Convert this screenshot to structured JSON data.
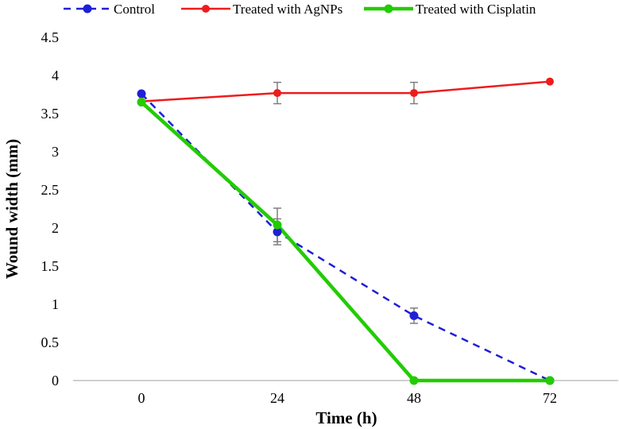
{
  "chart_data": {
    "type": "line",
    "xlabel": "Time (h)",
    "ylabel": "Wound width (mm)",
    "x": [
      0,
      24,
      48,
      72
    ],
    "x_tick_labels": [
      "0",
      "24",
      "48",
      "72"
    ],
    "ylim": [
      0,
      4.5
    ],
    "y_tick_labels": [
      "0",
      "0.5",
      "1",
      "1.5",
      "2",
      "2.5",
      "3",
      "3.5",
      "4",
      "4.5"
    ],
    "grid": false,
    "legend_position": "top",
    "series": [
      {
        "name": "Control",
        "color": "#1f1fd6",
        "line_style": "dashed",
        "values": [
          3.76,
          1.95,
          0.85,
          0.0
        ],
        "error": [
          0,
          0.17,
          0.1,
          0
        ]
      },
      {
        "name": "Treated with AgNPs",
        "color": "#ee1c1c",
        "line_style": "solid",
        "values": [
          3.66,
          3.77,
          3.77,
          3.92
        ],
        "error": [
          0,
          0.14,
          0.14,
          0
        ]
      },
      {
        "name": "Treated with Cisplatin",
        "color": "#22cc00",
        "line_style": "solid-thick",
        "values": [
          3.65,
          2.04,
          0.0,
          0.0
        ],
        "error": [
          0,
          0.22,
          0,
          0
        ]
      }
    ]
  }
}
